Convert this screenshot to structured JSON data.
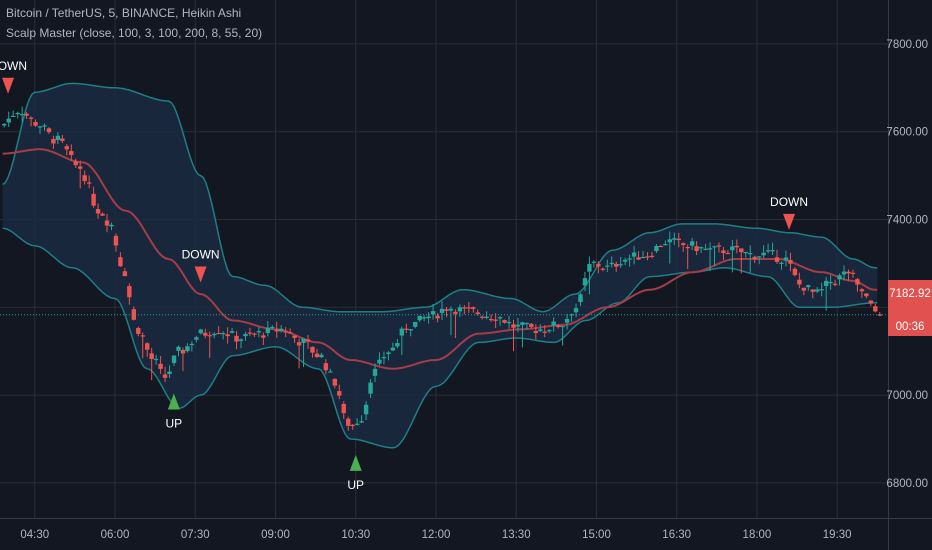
{
  "legend": {
    "symbol_line": "Bitcoin / TetherUS, 5, BINANCE, Heikin Ashi",
    "indicator_line": "Scalp Master (close, 100, 3, 100, 200, 8, 55, 20)"
  },
  "price_badge": {
    "value": "7182.92",
    "countdown": "00:36"
  },
  "colors": {
    "background": "#131722",
    "grid": "#2a2e39",
    "bull": "#26a69a",
    "bear": "#ef5350",
    "band": "#1e7f86",
    "band_fill": "#1a2a3f",
    "ma": "#a63c46",
    "up_marker": "#4caf50",
    "down_marker": "#ef5350",
    "badge_bg": "#e0514f"
  },
  "chart_data": {
    "type": "candlestick",
    "y_ticks": [
      "7800.00",
      "7600.00",
      "7400.00",
      "7000.00",
      "6800.00"
    ],
    "y_tick_values": [
      7800,
      7600,
      7400,
      7000,
      6800
    ],
    "ylim": [
      6720,
      7900
    ],
    "x_ticks": [
      "04:30",
      "06:00",
      "07:30",
      "09:00",
      "10:30",
      "12:00",
      "13:30",
      "15:00",
      "16:30",
      "18:00",
      "19:30"
    ],
    "x_tick_values": [
      4.5,
      6.0,
      7.5,
      9.0,
      10.5,
      12.0,
      13.5,
      15.0,
      16.5,
      18.0,
      19.5
    ],
    "xlim": [
      3.85,
      20.45
    ],
    "last_price": 7182.92,
    "ohlc_keypoints": [
      [
        3.9,
        7610
      ],
      [
        4.3,
        7650
      ],
      [
        4.6,
        7620
      ],
      [
        5.0,
        7580
      ],
      [
        5.4,
        7520
      ],
      [
        5.8,
        7420
      ],
      [
        6.0,
        7390
      ],
      [
        6.2,
        7300
      ],
      [
        6.5,
        7150
      ],
      [
        6.8,
        7080
      ],
      [
        7.0,
        7040
      ],
      [
        7.3,
        7100
      ],
      [
        7.7,
        7140
      ],
      [
        8.0,
        7150
      ],
      [
        8.4,
        7130
      ],
      [
        8.8,
        7140
      ],
      [
        9.2,
        7150
      ],
      [
        9.6,
        7120
      ],
      [
        9.9,
        7090
      ],
      [
        10.2,
        7030
      ],
      [
        10.4,
        6940
      ],
      [
        10.5,
        6930
      ],
      [
        10.7,
        6950
      ],
      [
        10.9,
        7050
      ],
      [
        11.2,
        7100
      ],
      [
        11.6,
        7160
      ],
      [
        12.0,
        7180
      ],
      [
        12.3,
        7200
      ],
      [
        12.7,
        7190
      ],
      [
        13.2,
        7180
      ],
      [
        13.6,
        7155
      ],
      [
        14.0,
        7150
      ],
      [
        14.4,
        7160
      ],
      [
        14.7,
        7200
      ],
      [
        15.0,
        7300
      ],
      [
        15.3,
        7290
      ],
      [
        15.6,
        7310
      ],
      [
        16.0,
        7320
      ],
      [
        16.4,
        7350
      ],
      [
        16.8,
        7340
      ],
      [
        17.2,
        7330
      ],
      [
        17.6,
        7330
      ],
      [
        18.0,
        7320
      ],
      [
        18.3,
        7320
      ],
      [
        18.6,
        7310
      ],
      [
        18.9,
        7250
      ],
      [
        19.2,
        7230
      ],
      [
        19.5,
        7260
      ],
      [
        19.8,
        7280
      ],
      [
        20.0,
        7240
      ],
      [
        20.3,
        7190
      ]
    ],
    "bands_upper": [
      [
        3.9,
        7480
      ],
      [
        4.5,
        7690
      ],
      [
        5.2,
        7710
      ],
      [
        6.0,
        7700
      ],
      [
        7.0,
        7670
      ],
      [
        7.6,
        7500
      ],
      [
        8.2,
        7270
      ],
      [
        8.8,
        7250
      ],
      [
        9.5,
        7200
      ],
      [
        10.2,
        7190
      ],
      [
        11.0,
        7190
      ],
      [
        11.8,
        7200
      ],
      [
        12.5,
        7240
      ],
      [
        13.4,
        7220
      ],
      [
        14.0,
        7190
      ],
      [
        14.6,
        7230
      ],
      [
        15.3,
        7330
      ],
      [
        16.0,
        7370
      ],
      [
        16.6,
        7390
      ],
      [
        17.2,
        7390
      ],
      [
        18.0,
        7380
      ],
      [
        18.6,
        7370
      ],
      [
        19.2,
        7360
      ],
      [
        19.8,
        7310
      ],
      [
        20.2,
        7290
      ]
    ],
    "bands_lower": [
      [
        3.9,
        7380
      ],
      [
        4.5,
        7340
      ],
      [
        5.2,
        7290
      ],
      [
        6.0,
        7220
      ],
      [
        6.6,
        7060
      ],
      [
        7.2,
        6970
      ],
      [
        7.6,
        7000
      ],
      [
        8.2,
        7090
      ],
      [
        9.0,
        7110
      ],
      [
        9.8,
        7060
      ],
      [
        10.4,
        6900
      ],
      [
        11.2,
        6880
      ],
      [
        12.0,
        7020
      ],
      [
        12.8,
        7120
      ],
      [
        13.5,
        7130
      ],
      [
        14.2,
        7120
      ],
      [
        14.8,
        7170
      ],
      [
        15.4,
        7210
      ],
      [
        16.0,
        7270
      ],
      [
        16.8,
        7280
      ],
      [
        17.4,
        7290
      ],
      [
        18.2,
        7270
      ],
      [
        18.8,
        7200
      ],
      [
        19.4,
        7200
      ],
      [
        20.2,
        7210
      ]
    ],
    "moving_average": [
      [
        3.9,
        7550
      ],
      [
        4.6,
        7560
      ],
      [
        5.4,
        7530
      ],
      [
        6.2,
        7420
      ],
      [
        7.0,
        7310
      ],
      [
        7.6,
        7230
      ],
      [
        8.2,
        7170
      ],
      [
        9.0,
        7150
      ],
      [
        9.8,
        7120
      ],
      [
        10.4,
        7080
      ],
      [
        11.2,
        7060
      ],
      [
        12.0,
        7080
      ],
      [
        12.8,
        7140
      ],
      [
        13.6,
        7150
      ],
      [
        14.4,
        7160
      ],
      [
        15.2,
        7200
      ],
      [
        16.0,
        7240
      ],
      [
        16.8,
        7280
      ],
      [
        17.6,
        7310
      ],
      [
        18.4,
        7310
      ],
      [
        19.2,
        7280
      ],
      [
        19.8,
        7260
      ],
      [
        20.2,
        7240
      ]
    ],
    "signals": [
      {
        "type": "DOWN",
        "x": 4.0,
        "y": 7700,
        "label": "DOWN"
      },
      {
        "type": "DOWN",
        "x": 7.6,
        "y": 7270,
        "label": "DOWN"
      },
      {
        "type": "UP",
        "x": 7.1,
        "y": 6990,
        "label": "UP"
      },
      {
        "type": "UP",
        "x": 10.5,
        "y": 6850,
        "label": "UP"
      },
      {
        "type": "DOWN",
        "x": 18.6,
        "y": 7390,
        "label": "DOWN"
      }
    ]
  }
}
